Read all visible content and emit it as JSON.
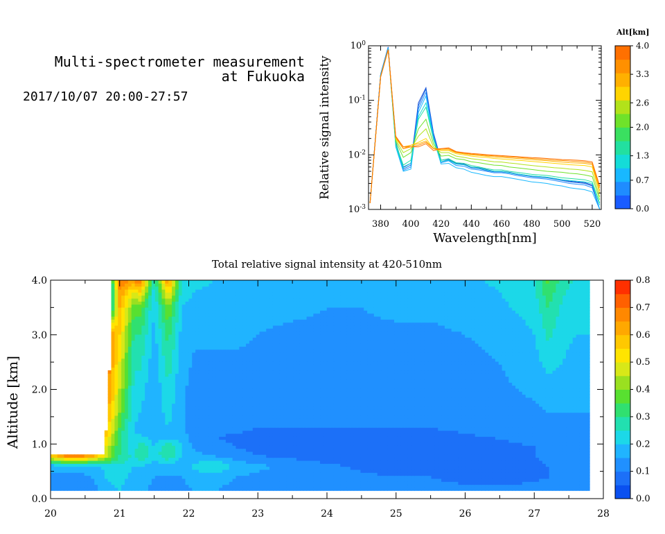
{
  "heading": {
    "line1": "Multi-spectrometer measurement",
    "line2": "at Fukuoka",
    "line3": "2017/10/07 20:00-27:57"
  },
  "chart_data": [
    {
      "type": "line",
      "xlabel": "Wavelength[nm]",
      "ylabel": "Relative signal intensity",
      "xlim": [
        372,
        526
      ],
      "ylim": [
        0.001,
        1
      ],
      "yscale": "log",
      "xticks": [
        380,
        400,
        420,
        440,
        460,
        480,
        500,
        520
      ],
      "yticks": [
        {
          "value": 0.001,
          "base": "10",
          "exp": "-3"
        },
        {
          "value": 0.01,
          "base": "10",
          "exp": "-2"
        },
        {
          "value": 0.1,
          "base": "10",
          "exp": "-1"
        },
        {
          "value": 1,
          "base": "10",
          "exp": "0"
        }
      ],
      "colorbar": {
        "label": "Alt[km]",
        "levels": [
          0.0,
          0.7,
          1.3,
          2.0,
          2.6,
          3.3,
          4.0
        ],
        "tick_labels": [
          "0.0",
          "0.7",
          "1.3",
          "2.0",
          "2.6",
          "3.3",
          "4.0"
        ],
        "colors": [
          "#1a5cff",
          "#1f8cff",
          "#18b8ff",
          "#14dcd8",
          "#22e0a0",
          "#3ae060",
          "#6fe22a",
          "#b2e21a",
          "#ffd400",
          "#ffb000",
          "#ff9000",
          "#ff7000"
        ]
      },
      "x": [
        373,
        380,
        385,
        390,
        395,
        400,
        405,
        410,
        415,
        420,
        425,
        430,
        435,
        440,
        445,
        450,
        455,
        460,
        465,
        470,
        475,
        480,
        485,
        490,
        495,
        500,
        505,
        510,
        515,
        520,
        525
      ],
      "series": [
        {
          "color": "#1a4fd6",
          "values": [
            0.0013,
            0.3,
            0.95,
            0.017,
            0.006,
            0.007,
            0.09,
            0.17,
            0.025,
            0.008,
            0.0085,
            0.007,
            0.0068,
            0.006,
            0.0058,
            0.0054,
            0.005,
            0.005,
            0.0048,
            0.0045,
            0.0043,
            0.0041,
            0.004,
            0.0039,
            0.0037,
            0.0035,
            0.0033,
            0.0032,
            0.0031,
            0.0028,
            0.001
          ]
        },
        {
          "color": "#1466e0",
          "values": [
            0.0013,
            0.3,
            0.95,
            0.016,
            0.0055,
            0.0065,
            0.08,
            0.16,
            0.024,
            0.0075,
            0.0082,
            0.0068,
            0.0066,
            0.0058,
            0.0056,
            0.0052,
            0.0049,
            0.0049,
            0.0047,
            0.0044,
            0.0042,
            0.004,
            0.0039,
            0.0038,
            0.0036,
            0.0034,
            0.0032,
            0.0031,
            0.003,
            0.0027,
            0.001
          ]
        },
        {
          "color": "#1f8cff",
          "values": [
            0.0013,
            0.3,
            0.92,
            0.015,
            0.0052,
            0.006,
            0.07,
            0.14,
            0.022,
            0.0072,
            0.0078,
            0.0064,
            0.0062,
            0.0055,
            0.0053,
            0.005,
            0.0047,
            0.0047,
            0.0045,
            0.0042,
            0.004,
            0.0038,
            0.0037,
            0.0036,
            0.0034,
            0.0032,
            0.003,
            0.0029,
            0.0028,
            0.0025,
            0.001
          ]
        },
        {
          "color": "#18b8ff",
          "values": [
            0.0013,
            0.28,
            0.9,
            0.014,
            0.005,
            0.0055,
            0.06,
            0.12,
            0.02,
            0.0068,
            0.007,
            0.0058,
            0.0055,
            0.0048,
            0.0045,
            0.0042,
            0.004,
            0.004,
            0.0038,
            0.0036,
            0.0034,
            0.0032,
            0.0031,
            0.003,
            0.0028,
            0.0027,
            0.0025,
            0.0024,
            0.0023,
            0.0021,
            0.001
          ]
        },
        {
          "color": "#14dcd8",
          "values": [
            0.0013,
            0.28,
            0.88,
            0.015,
            0.0058,
            0.007,
            0.05,
            0.09,
            0.02,
            0.0075,
            0.008,
            0.0068,
            0.0066,
            0.006,
            0.0057,
            0.0053,
            0.005,
            0.005,
            0.0047,
            0.0045,
            0.0043,
            0.0041,
            0.004,
            0.0039,
            0.0037,
            0.0035,
            0.0034,
            0.0033,
            0.0032,
            0.003,
            0.0012
          ]
        },
        {
          "color": "#22e0a0",
          "values": [
            0.0013,
            0.28,
            0.85,
            0.016,
            0.0065,
            0.008,
            0.045,
            0.075,
            0.019,
            0.008,
            0.0085,
            0.0072,
            0.007,
            0.0064,
            0.006,
            0.0056,
            0.0053,
            0.0053,
            0.005,
            0.0048,
            0.0046,
            0.0044,
            0.0043,
            0.0042,
            0.004,
            0.0038,
            0.0037,
            0.0036,
            0.0035,
            0.0032,
            0.0013
          ]
        },
        {
          "color": "#6fe22a",
          "values": [
            0.0013,
            0.27,
            0.85,
            0.018,
            0.009,
            0.011,
            0.03,
            0.045,
            0.016,
            0.0095,
            0.0098,
            0.0085,
            0.0082,
            0.0075,
            0.0072,
            0.0068,
            0.0065,
            0.0064,
            0.006,
            0.0058,
            0.0056,
            0.0054,
            0.0052,
            0.005,
            0.0049,
            0.0048,
            0.0046,
            0.0045,
            0.0043,
            0.004,
            0.0015
          ]
        },
        {
          "color": "#b2e21a",
          "values": [
            0.0013,
            0.27,
            0.85,
            0.019,
            0.011,
            0.013,
            0.022,
            0.03,
            0.014,
            0.011,
            0.011,
            0.0095,
            0.009,
            0.0085,
            0.0082,
            0.0078,
            0.0075,
            0.0074,
            0.0071,
            0.0069,
            0.0066,
            0.0064,
            0.0062,
            0.006,
            0.0058,
            0.0057,
            0.0055,
            0.0054,
            0.0052,
            0.0049,
            0.0017
          ]
        },
        {
          "color": "#ffd400",
          "values": [
            0.0013,
            0.27,
            0.85,
            0.02,
            0.013,
            0.015,
            0.017,
            0.02,
            0.013,
            0.012,
            0.012,
            0.0105,
            0.01,
            0.0095,
            0.0092,
            0.009,
            0.0086,
            0.0084,
            0.0082,
            0.008,
            0.0078,
            0.0076,
            0.0074,
            0.0072,
            0.007,
            0.0068,
            0.0066,
            0.0065,
            0.0064,
            0.006,
            0.002
          ]
        },
        {
          "color": "#ffb000",
          "values": [
            0.0013,
            0.27,
            0.85,
            0.021,
            0.014,
            0.015,
            0.016,
            0.018,
            0.013,
            0.0125,
            0.0125,
            0.011,
            0.0105,
            0.01,
            0.0098,
            0.0095,
            0.0092,
            0.009,
            0.0088,
            0.0086,
            0.0084,
            0.0082,
            0.008,
            0.0078,
            0.0076,
            0.0074,
            0.0072,
            0.0071,
            0.007,
            0.0066,
            0.0022
          ]
        },
        {
          "color": "#ff9000",
          "values": [
            0.0013,
            0.27,
            0.85,
            0.021,
            0.013,
            0.014,
            0.015,
            0.017,
            0.013,
            0.013,
            0.013,
            0.0112,
            0.0108,
            0.0103,
            0.01,
            0.0098,
            0.0096,
            0.0094,
            0.0092,
            0.009,
            0.0088,
            0.0086,
            0.0084,
            0.0082,
            0.008,
            0.0079,
            0.0077,
            0.0076,
            0.0074,
            0.007,
            0.0025
          ]
        },
        {
          "color": "#ff7000",
          "values": [
            0.0013,
            0.27,
            0.85,
            0.022,
            0.014,
            0.014,
            0.014,
            0.016,
            0.012,
            0.013,
            0.0135,
            0.0115,
            0.011,
            0.0106,
            0.0104,
            0.0101,
            0.0099,
            0.0097,
            0.0095,
            0.0093,
            0.0091,
            0.0089,
            0.0088,
            0.0086,
            0.0084,
            0.0082,
            0.0081,
            0.008,
            0.0078,
            0.0074,
            0.0027
          ]
        }
      ]
    },
    {
      "type": "heatmap",
      "title": "Total relative signal intensity at 420-510nm",
      "xlabel": "",
      "ylabel": "Altitude [km]",
      "xlim": [
        20,
        28
      ],
      "ylim": [
        0,
        4
      ],
      "xticks": [
        "20",
        "21",
        "22",
        "23",
        "24",
        "25",
        "26",
        "27",
        "28"
      ],
      "yticks": [
        "0.0",
        "1.0",
        "2.0",
        "3.0",
        "4.0"
      ],
      "colorbar": {
        "levels": [
          0.0,
          0.1,
          0.2,
          0.3,
          0.4,
          0.5,
          0.6,
          0.7,
          0.8
        ],
        "tick_labels": [
          "0.0",
          "0.1",
          "0.2",
          "0.3",
          "0.4",
          "0.5",
          "0.6",
          "0.7",
          "0.8"
        ],
        "colors": [
          "#0a50f0",
          "#1c70f8",
          "#2090ff",
          "#20b4ff",
          "#1cd8e8",
          "#22e0b0",
          "#30e070",
          "#58e030",
          "#9ae020",
          "#d8e818",
          "#ffe400",
          "#ffc800",
          "#ffa800",
          "#ff8800",
          "#ff6000",
          "#ff3000"
        ]
      },
      "valid_region": {
        "start_time": [
          20,
          20.6,
          20.78,
          20.82,
          20.86,
          20.9
        ],
        "start_altitude": [
          0.8,
          0.8,
          0.8,
          1.5,
          2.5,
          4.0
        ],
        "end_time": 27.8,
        "min_altitude": 0.15
      },
      "time_grid": [
        20,
        20.2,
        20.4,
        20.6,
        20.8,
        21.0,
        21.2,
        21.3,
        21.5,
        21.7,
        21.9,
        22.1,
        22.4,
        22.7,
        23.0,
        23.5,
        24.0,
        24.5,
        25.0,
        25.5,
        26.0,
        26.5,
        27.0,
        27.2,
        27.4,
        27.6,
        27.8
      ],
      "altitude_grid": [
        0.15,
        0.4,
        0.6,
        0.8,
        0.95,
        1.1,
        1.3,
        1.6,
        2.0,
        2.5,
        3.0,
        3.5,
        3.8,
        4.0
      ],
      "values": [
        [
          0.12,
          0.12,
          0.12,
          0.12,
          0.18,
          0.2,
          0.16,
          0.16,
          0.14,
          0.14,
          0.14,
          0.15,
          0.15,
          0.14,
          0.14,
          0.13,
          0.12,
          0.11,
          0.11,
          0.11,
          0.11,
          0.11,
          0.12,
          0.12,
          0.12,
          0.12,
          0.12
        ],
        [
          0.14,
          0.14,
          0.14,
          0.15,
          0.2,
          0.22,
          0.18,
          0.17,
          0.15,
          0.15,
          0.15,
          0.17,
          0.16,
          0.15,
          0.14,
          0.13,
          0.12,
          0.11,
          0.1,
          0.1,
          0.09,
          0.08,
          0.09,
          0.1,
          0.1,
          0.1,
          0.1
        ],
        [
          0.16,
          0.16,
          0.16,
          0.17,
          0.22,
          0.24,
          0.2,
          0.2,
          0.18,
          0.18,
          0.17,
          0.22,
          0.26,
          0.18,
          0.16,
          0.14,
          0.11,
          0.09,
          0.08,
          0.07,
          0.07,
          0.08,
          0.09,
          0.1,
          0.1,
          0.1,
          0.1
        ],
        [
          0.6,
          0.7,
          0.75,
          0.65,
          0.5,
          0.3,
          0.24,
          0.3,
          0.22,
          0.3,
          0.2,
          0.16,
          0.14,
          0.12,
          0.1,
          0.08,
          0.07,
          0.07,
          0.07,
          0.07,
          0.07,
          0.08,
          0.1,
          0.11,
          0.11,
          0.11,
          0.11
        ],
        [
          0.0,
          0.0,
          0.0,
          0.0,
          0.5,
          0.3,
          0.2,
          0.3,
          0.2,
          0.3,
          0.2,
          0.14,
          0.12,
          0.1,
          0.08,
          0.07,
          0.06,
          0.06,
          0.06,
          0.07,
          0.08,
          0.09,
          0.1,
          0.11,
          0.11,
          0.11,
          0.11
        ],
        [
          0.0,
          0.0,
          0.0,
          0.0,
          0.55,
          0.3,
          0.2,
          0.22,
          0.18,
          0.2,
          0.18,
          0.12,
          0.1,
          0.09,
          0.08,
          0.08,
          0.08,
          0.08,
          0.08,
          0.08,
          0.09,
          0.1,
          0.11,
          0.12,
          0.12,
          0.12,
          0.12
        ],
        [
          0.0,
          0.0,
          0.0,
          0.0,
          0.6,
          0.35,
          0.2,
          0.18,
          0.16,
          0.2,
          0.16,
          0.12,
          0.11,
          0.11,
          0.1,
          0.1,
          0.1,
          0.1,
          0.1,
          0.1,
          0.11,
          0.12,
          0.13,
          0.14,
          0.14,
          0.14,
          0.14
        ],
        [
          0.0,
          0.0,
          0.0,
          0.0,
          0.65,
          0.4,
          0.22,
          0.2,
          0.16,
          0.22,
          0.16,
          0.13,
          0.12,
          0.12,
          0.11,
          0.11,
          0.11,
          0.11,
          0.11,
          0.11,
          0.12,
          0.13,
          0.14,
          0.15,
          0.15,
          0.15,
          0.15
        ],
        [
          0.0,
          0.0,
          0.0,
          0.0,
          0.7,
          0.45,
          0.24,
          0.22,
          0.16,
          0.24,
          0.16,
          0.13,
          0.13,
          0.13,
          0.12,
          0.12,
          0.12,
          0.12,
          0.12,
          0.12,
          0.13,
          0.14,
          0.16,
          0.18,
          0.17,
          0.16,
          0.16
        ],
        [
          0.0,
          0.0,
          0.0,
          0.0,
          0.72,
          0.5,
          0.26,
          0.26,
          0.17,
          0.28,
          0.17,
          0.14,
          0.14,
          0.14,
          0.14,
          0.13,
          0.13,
          0.13,
          0.13,
          0.13,
          0.14,
          0.15,
          0.18,
          0.22,
          0.2,
          0.18,
          0.18
        ],
        [
          0.0,
          0.0,
          0.0,
          0.0,
          0.75,
          0.55,
          0.3,
          0.3,
          0.18,
          0.32,
          0.18,
          0.16,
          0.16,
          0.16,
          0.15,
          0.14,
          0.14,
          0.14,
          0.14,
          0.14,
          0.15,
          0.16,
          0.2,
          0.26,
          0.22,
          0.2,
          0.2
        ],
        [
          0.0,
          0.0,
          0.0,
          0.0,
          0.0,
          0.6,
          0.38,
          0.38,
          0.2,
          0.4,
          0.2,
          0.18,
          0.17,
          0.17,
          0.16,
          0.16,
          0.15,
          0.15,
          0.16,
          0.16,
          0.17,
          0.19,
          0.22,
          0.3,
          0.24,
          0.22,
          0.22
        ],
        [
          0.0,
          0.0,
          0.0,
          0.0,
          0.0,
          0.65,
          0.5,
          0.55,
          0.22,
          0.55,
          0.22,
          0.2,
          0.18,
          0.18,
          0.17,
          0.17,
          0.16,
          0.16,
          0.17,
          0.17,
          0.18,
          0.2,
          0.24,
          0.34,
          0.26,
          0.23,
          0.23
        ],
        [
          0.0,
          0.0,
          0.0,
          0.0,
          0.0,
          0.7,
          0.65,
          0.7,
          0.25,
          0.65,
          0.25,
          0.22,
          0.2,
          0.2,
          0.19,
          0.18,
          0.17,
          0.17,
          0.18,
          0.18,
          0.19,
          0.21,
          0.25,
          0.36,
          0.28,
          0.24,
          0.24
        ]
      ]
    }
  ]
}
